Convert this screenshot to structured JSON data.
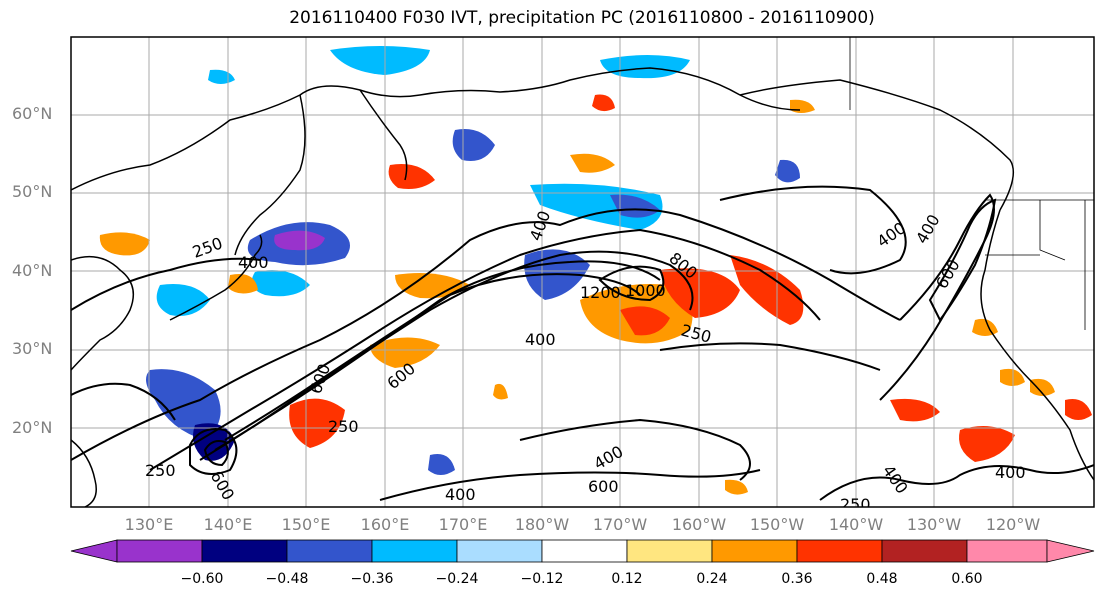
{
  "title": "2016110400 F030 IVT, precipitation PC (2016110800 - 2016110900)",
  "latitude_labels": [
    "60°N",
    "50°N",
    "40°N",
    "30°N",
    "20°N"
  ],
  "longitude_labels": [
    "130°E",
    "140°E",
    "150°E",
    "160°E",
    "170°E",
    "180°W",
    "170°W",
    "160°W",
    "150°W",
    "140°W",
    "130°W",
    "120°W"
  ],
  "contour_labels": [
    "250",
    "400",
    "400",
    "400",
    "400",
    "600",
    "800",
    "1200",
    "1000",
    "250",
    "400",
    "600",
    "600",
    "250",
    "400",
    "600",
    "400",
    "400",
    "250",
    "250",
    "600",
    "400"
  ],
  "colorbar": {
    "ticks": [
      "−0.60",
      "−0.48",
      "−0.36",
      "−0.24",
      "−0.12",
      "0.12",
      "0.24",
      "0.36",
      "0.48",
      "0.60"
    ],
    "colors": [
      "#9933cc",
      "#000080",
      "#3355cc",
      "#00bbff",
      "#aaddff",
      "#ffffff",
      "#ffe680",
      "#ff9900",
      "#ff3300",
      "#b22222",
      "#ff88aa"
    ]
  },
  "colors": {
    "coastline": "#000000",
    "gridline": "#aaaaaa",
    "ivt_contour": "#000000"
  }
}
